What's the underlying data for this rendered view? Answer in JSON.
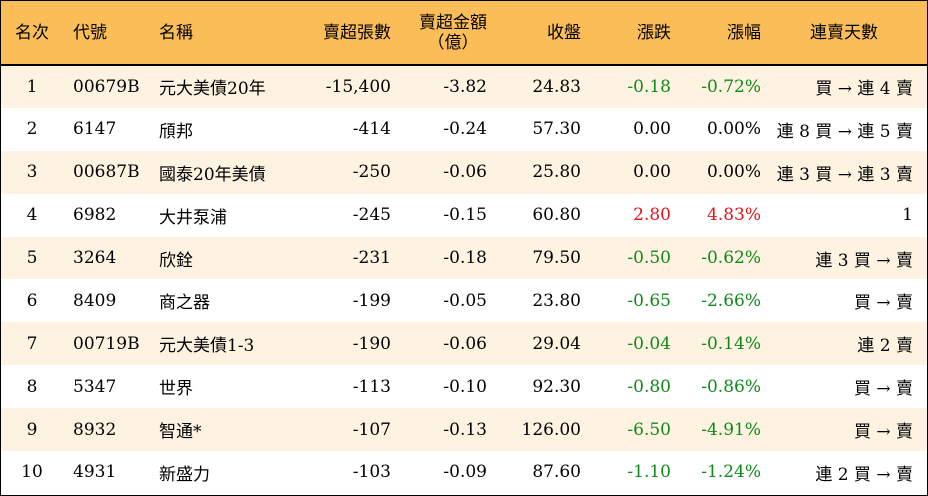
{
  "colors": {
    "header_bg": "#fbbd57",
    "odd_row_bg": "#fdf3e0",
    "down": "#11881b",
    "up": "#e3141e"
  },
  "headers": {
    "rank": "名次",
    "code": "代號",
    "name": "名稱",
    "sheets": "賣超張數",
    "amount_line1": "賣超金額",
    "amount_line2": "（億）",
    "close": "收盤",
    "change": "漲跌",
    "pct": "漲幅",
    "streak": "連賣天數"
  },
  "rows": [
    {
      "rank": "1",
      "code": "00679B",
      "name": "元大美債20年",
      "sheets": "-15,400",
      "amount": "-3.82",
      "close": "24.83",
      "change": "-0.18",
      "pct": "-0.72%",
      "trend": "down",
      "streak": "買 → 連 4 賣"
    },
    {
      "rank": "2",
      "code": "6147",
      "name": "頎邦",
      "sheets": "-414",
      "amount": "-0.24",
      "close": "57.30",
      "change": "0.00",
      "pct": "0.00%",
      "trend": "flat",
      "streak": "連 8 買 → 連 5 賣"
    },
    {
      "rank": "3",
      "code": "00687B",
      "name": "國泰20年美債",
      "sheets": "-250",
      "amount": "-0.06",
      "close": "25.80",
      "change": "0.00",
      "pct": "0.00%",
      "trend": "flat",
      "streak": "連 3 買 → 連 3 賣"
    },
    {
      "rank": "4",
      "code": "6982",
      "name": "大井泵浦",
      "sheets": "-245",
      "amount": "-0.15",
      "close": "60.80",
      "change": "2.80",
      "pct": "4.83%",
      "trend": "up",
      "streak": "1"
    },
    {
      "rank": "5",
      "code": "3264",
      "name": "欣銓",
      "sheets": "-231",
      "amount": "-0.18",
      "close": "79.50",
      "change": "-0.50",
      "pct": "-0.62%",
      "trend": "down",
      "streak": "連 3 買 → 賣"
    },
    {
      "rank": "6",
      "code": "8409",
      "name": "商之器",
      "sheets": "-199",
      "amount": "-0.05",
      "close": "23.80",
      "change": "-0.65",
      "pct": "-2.66%",
      "trend": "down",
      "streak": "買 → 賣"
    },
    {
      "rank": "7",
      "code": "00719B",
      "name": "元大美債1-3",
      "sheets": "-190",
      "amount": "-0.06",
      "close": "29.04",
      "change": "-0.04",
      "pct": "-0.14%",
      "trend": "down",
      "streak": "連 2 賣"
    },
    {
      "rank": "8",
      "code": "5347",
      "name": "世界",
      "sheets": "-113",
      "amount": "-0.10",
      "close": "92.30",
      "change": "-0.80",
      "pct": "-0.86%",
      "trend": "down",
      "streak": "買 → 賣"
    },
    {
      "rank": "9",
      "code": "8932",
      "name": "智通*",
      "sheets": "-107",
      "amount": "-0.13",
      "close": "126.00",
      "change": "-6.50",
      "pct": "-4.91%",
      "trend": "down",
      "streak": "買 → 賣"
    },
    {
      "rank": "10",
      "code": "4931",
      "name": "新盛力",
      "sheets": "-103",
      "amount": "-0.09",
      "close": "87.60",
      "change": "-1.10",
      "pct": "-1.24%",
      "trend": "down",
      "streak": "連 2 買 → 賣"
    }
  ]
}
